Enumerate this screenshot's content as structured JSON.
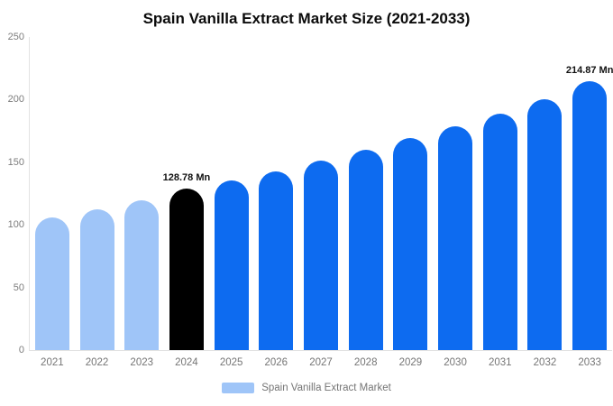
{
  "title": "Spain Vanilla Extract Market Size (2021-2033)",
  "legend": {
    "label": "Spain Vanilla Extract Market",
    "marker_color": "#9fc5f8"
  },
  "colors": {
    "historical": "#9fc5f8",
    "base_year": "#000000",
    "forecast": "#0d6bf0",
    "axis_line": "#e2e2e2",
    "tick_text": "#7c7c7c"
  },
  "chart_data": {
    "type": "bar",
    "title": "Spain Vanilla Extract Market Size (2021-2033)",
    "categories": [
      "2021",
      "2022",
      "2023",
      "2024",
      "2025",
      "2026",
      "2027",
      "2028",
      "2029",
      "2030",
      "2031",
      "2032",
      "2033"
    ],
    "values": [
      106,
      112.5,
      119.5,
      128.78,
      135.5,
      143,
      151,
      160,
      169,
      179,
      189,
      200.5,
      214.87
    ],
    "bar_colors": [
      "#9fc5f8",
      "#9fc5f8",
      "#9fc5f8",
      "#000000",
      "#0d6bf0",
      "#0d6bf0",
      "#0d6bf0",
      "#0d6bf0",
      "#0d6bf0",
      "#0d6bf0",
      "#0d6bf0",
      "#0d6bf0",
      "#0d6bf0"
    ],
    "data_labels": [
      {
        "index": 3,
        "text": "128.78 Mn"
      },
      {
        "index": 12,
        "text": "214.87 Mn"
      }
    ],
    "unit": "Mn",
    "xlabel": "",
    "ylabel": "",
    "ylim": [
      0,
      250
    ],
    "yticks": [
      0,
      50,
      100,
      150,
      200,
      250
    ],
    "grid": false,
    "legend_position": "bottom"
  }
}
